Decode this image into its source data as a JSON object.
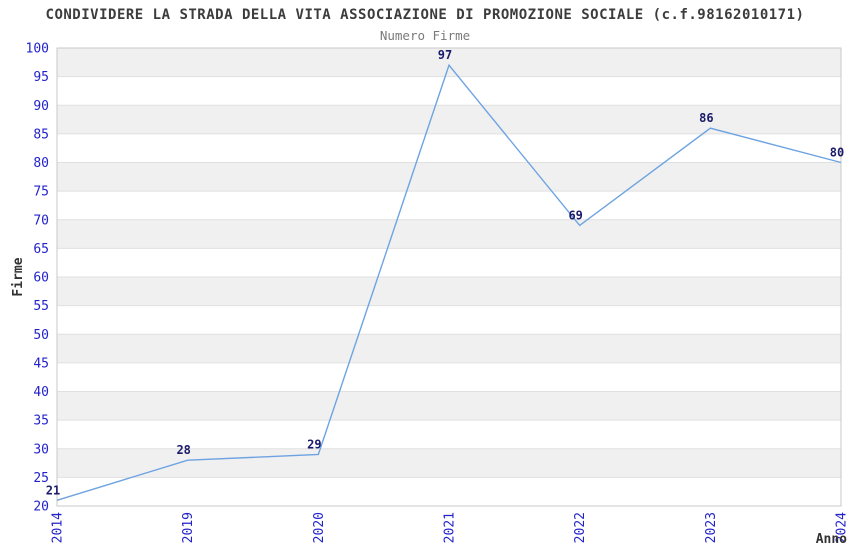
{
  "chart_data": {
    "type": "line",
    "title": "CONDIVIDERE LA STRADA DELLA VITA ASSOCIAZIONE DI PROMOZIONE SOCIALE (c.f.98162010171)",
    "subtitle": "Numero Firme",
    "xlabel": "Anno",
    "ylabel": "Firme",
    "categories": [
      "2014",
      "2019",
      "2020",
      "2021",
      "2022",
      "2023",
      "2024"
    ],
    "values": [
      21,
      28,
      29,
      97,
      69,
      86,
      80
    ],
    "ylim": [
      20,
      100
    ],
    "y_ticks": [
      20,
      25,
      30,
      35,
      40,
      45,
      50,
      55,
      60,
      65,
      70,
      75,
      80,
      85,
      90,
      95,
      100
    ],
    "grid": "horizontal-bands-alternating",
    "legend": "none",
    "x_tick_rotation": -90,
    "colors": {
      "line": "#6ea3e2",
      "tick_label": "#2323cc",
      "data_label": "#1b1b6b",
      "band": "#f0f0f0",
      "band_alt": "#ffffff",
      "grid_line": "#e0e0e0",
      "plot_border": "#c9c9c9",
      "title": "#3c3c3c",
      "subtitle": "#7a7a7a",
      "axis_title": "#333333",
      "background": "#ffffff"
    }
  }
}
